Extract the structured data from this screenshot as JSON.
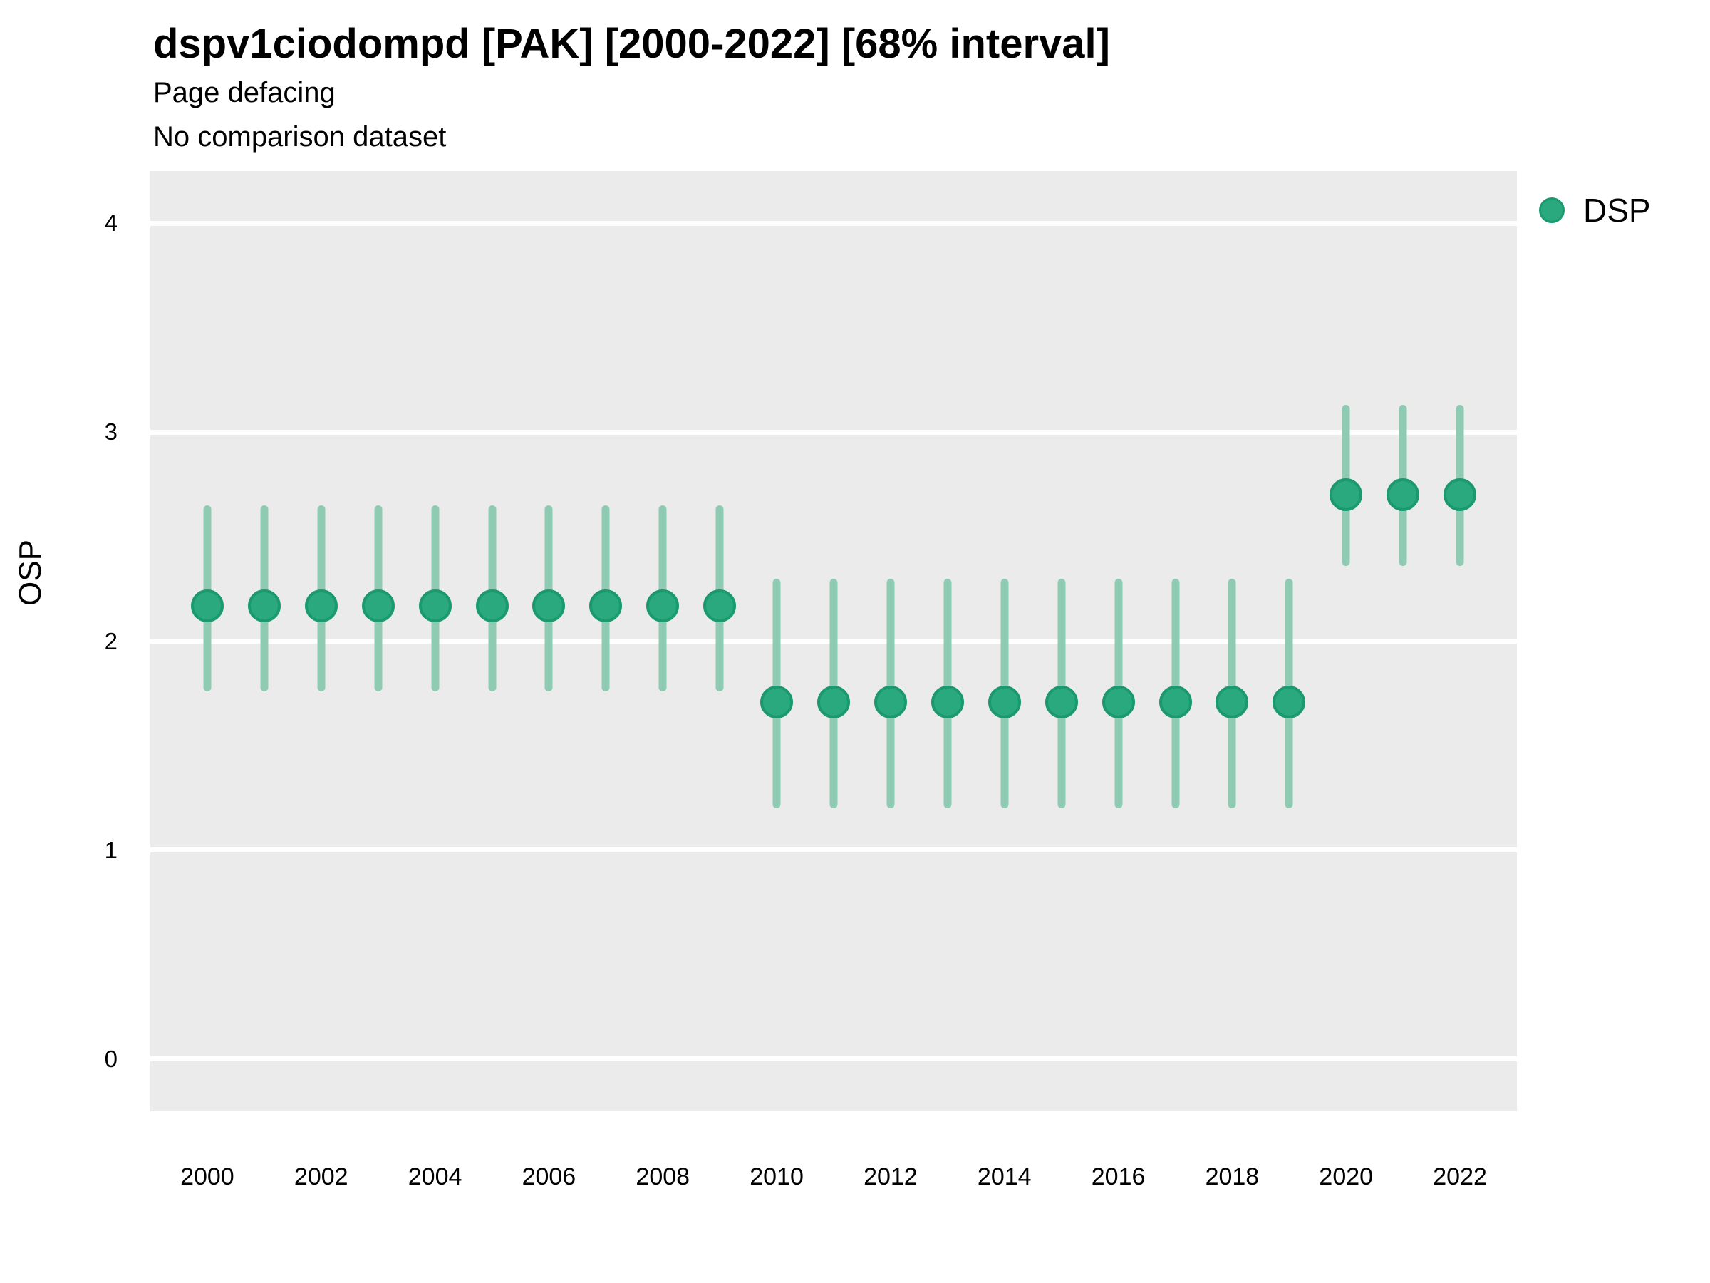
{
  "header": {
    "title": "dspv1ciodompd [PAK] [2000-2022] [68% interval]",
    "subtitle1": "Page defacing",
    "subtitle2": "No comparison dataset"
  },
  "legend": {
    "label": "DSP"
  },
  "colors": {
    "point_fill": "#2AA87E",
    "point_stroke": "#1B9A70",
    "interval_bar": "#8FCBB3",
    "panel_bg": "#EBEBEB",
    "gridline": "#FFFFFF",
    "text": "#000000"
  },
  "chart_data": {
    "type": "scatter",
    "title": "dspv1ciodompd [PAK] [2000-2022] [68% interval]",
    "subtitle": "Page defacing",
    "note": "No comparison dataset",
    "interval_level": "68%",
    "xlabel": "",
    "ylabel": "OSP",
    "x_ticks": [
      2000,
      2002,
      2004,
      2006,
      2008,
      2010,
      2012,
      2014,
      2016,
      2018,
      2020,
      2022
    ],
    "y_ticks": [
      0,
      1,
      2,
      3,
      4
    ],
    "x_domain": [
      1999,
      2023
    ],
    "y_domain": [
      -0.25,
      4.25
    ],
    "grid": "major-horizontal-only",
    "legend_position": "right-top",
    "series": [
      {
        "name": "DSP",
        "points": [
          {
            "year": 2000,
            "value": 2.17,
            "lo": 1.76,
            "hi": 2.65
          },
          {
            "year": 2001,
            "value": 2.17,
            "lo": 1.76,
            "hi": 2.65
          },
          {
            "year": 2002,
            "value": 2.17,
            "lo": 1.76,
            "hi": 2.65
          },
          {
            "year": 2003,
            "value": 2.17,
            "lo": 1.76,
            "hi": 2.65
          },
          {
            "year": 2004,
            "value": 2.17,
            "lo": 1.76,
            "hi": 2.65
          },
          {
            "year": 2005,
            "value": 2.17,
            "lo": 1.76,
            "hi": 2.65
          },
          {
            "year": 2006,
            "value": 2.17,
            "lo": 1.76,
            "hi": 2.65
          },
          {
            "year": 2007,
            "value": 2.17,
            "lo": 1.76,
            "hi": 2.65
          },
          {
            "year": 2008,
            "value": 2.17,
            "lo": 1.76,
            "hi": 2.65
          },
          {
            "year": 2009,
            "value": 2.17,
            "lo": 1.76,
            "hi": 2.65
          },
          {
            "year": 2010,
            "value": 1.71,
            "lo": 1.2,
            "hi": 2.3
          },
          {
            "year": 2011,
            "value": 1.71,
            "lo": 1.2,
            "hi": 2.3
          },
          {
            "year": 2012,
            "value": 1.71,
            "lo": 1.2,
            "hi": 2.3
          },
          {
            "year": 2013,
            "value": 1.71,
            "lo": 1.2,
            "hi": 2.3
          },
          {
            "year": 2014,
            "value": 1.71,
            "lo": 1.2,
            "hi": 2.3
          },
          {
            "year": 2015,
            "value": 1.71,
            "lo": 1.2,
            "hi": 2.3
          },
          {
            "year": 2016,
            "value": 1.71,
            "lo": 1.2,
            "hi": 2.3
          },
          {
            "year": 2017,
            "value": 1.71,
            "lo": 1.2,
            "hi": 2.3
          },
          {
            "year": 2018,
            "value": 1.71,
            "lo": 1.2,
            "hi": 2.3
          },
          {
            "year": 2019,
            "value": 1.71,
            "lo": 1.2,
            "hi": 2.3
          },
          {
            "year": 2020,
            "value": 2.7,
            "lo": 2.36,
            "hi": 3.13
          },
          {
            "year": 2021,
            "value": 2.7,
            "lo": 2.36,
            "hi": 3.13
          },
          {
            "year": 2022,
            "value": 2.7,
            "lo": 2.36,
            "hi": 3.13
          }
        ]
      }
    ]
  }
}
